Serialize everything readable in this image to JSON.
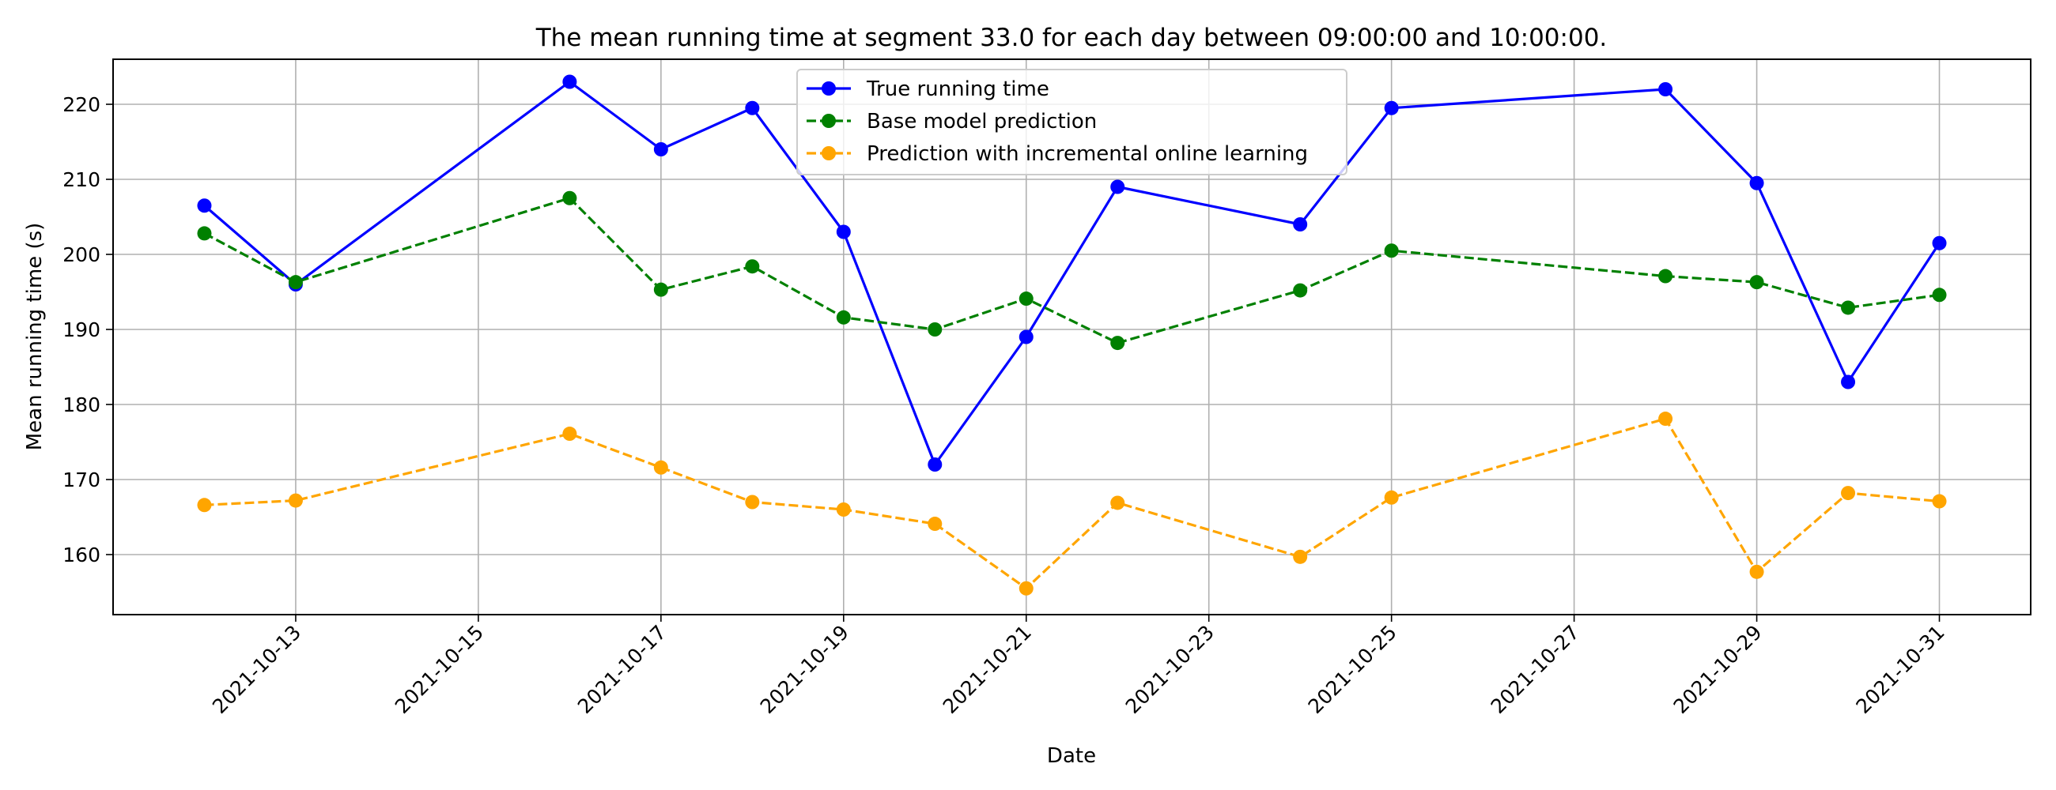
{
  "chart_data": {
    "type": "line",
    "title": "The mean running time at segment 33.0 for each day between 09:00:00 and 10:00:00.",
    "xlabel": "Date",
    "ylabel": "Mean running time (s)",
    "x": [
      "2021-10-12",
      "2021-10-13",
      "2021-10-16",
      "2021-10-17",
      "2021-10-18",
      "2021-10-19",
      "2021-10-20",
      "2021-10-21",
      "2021-10-22",
      "2021-10-24",
      "2021-10-25",
      "2021-10-28",
      "2021-10-29",
      "2021-10-30",
      "2021-10-31"
    ],
    "xlim": [
      "2021-10-11",
      "2021-11-01"
    ],
    "ylim": [
      152,
      226
    ],
    "x_ticks": [
      "2021-10-13",
      "2021-10-15",
      "2021-10-17",
      "2021-10-19",
      "2021-10-21",
      "2021-10-23",
      "2021-10-25",
      "2021-10-27",
      "2021-10-29",
      "2021-10-31"
    ],
    "y_ticks": [
      160,
      170,
      180,
      190,
      200,
      210,
      220
    ],
    "grid": true,
    "legend_position": "top-center",
    "series": [
      {
        "name": "True running time",
        "color": "#0000ff",
        "line_style": "solid",
        "values": [
          206.5,
          196.0,
          223.0,
          214.0,
          219.5,
          203.0,
          172.0,
          189.0,
          209.0,
          204.0,
          219.5,
          222.0,
          209.5,
          183.0,
          201.5
        ]
      },
      {
        "name": "Base model prediction",
        "color": "#008000",
        "line_style": "dashed",
        "values": [
          202.8,
          196.3,
          207.5,
          195.3,
          198.4,
          191.6,
          190.0,
          194.1,
          188.2,
          195.2,
          200.5,
          197.1,
          196.3,
          192.9,
          194.6
        ]
      },
      {
        "name": "Prediction with incremental online learning",
        "color": "#ffa500",
        "line_style": "dashed",
        "values": [
          166.6,
          167.2,
          176.1,
          171.6,
          167.0,
          166.0,
          164.1,
          155.5,
          166.9,
          159.7,
          167.6,
          178.1,
          157.7,
          168.2,
          167.1
        ]
      }
    ]
  }
}
